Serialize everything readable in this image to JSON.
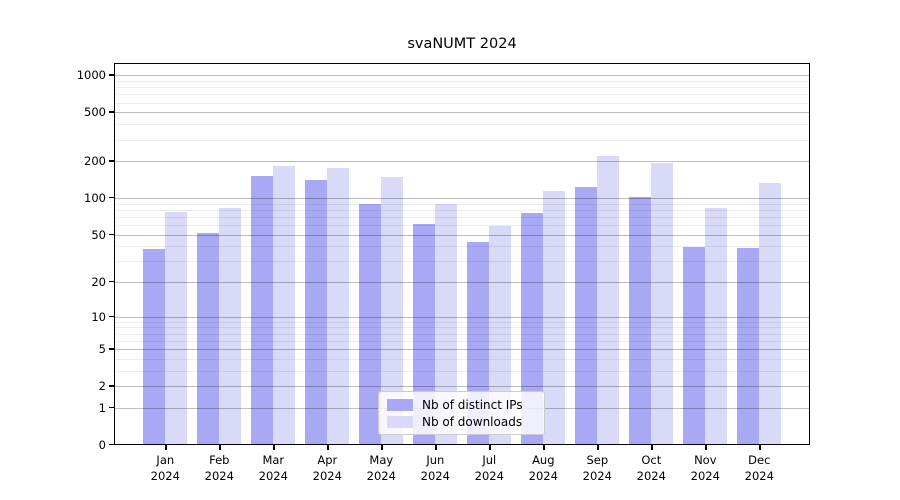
{
  "chart_data": {
    "type": "bar",
    "title": "svaNUMT 2024",
    "x_tick_top": [
      "Jan",
      "Feb",
      "Mar",
      "Apr",
      "May",
      "Jun",
      "Jul",
      "Aug",
      "Sep",
      "Oct",
      "Nov",
      "Dec"
    ],
    "x_tick_bottom": [
      "2024",
      "2024",
      "2024",
      "2024",
      "2024",
      "2024",
      "2024",
      "2024",
      "2024",
      "2024",
      "2024",
      "2024"
    ],
    "series": [
      {
        "name": "Nb of distinct IPs",
        "color": "#a8a8f5",
        "values": [
          37,
          51,
          150,
          137,
          87,
          60,
          43,
          74,
          120,
          100,
          39,
          38
        ]
      },
      {
        "name": "Nb of downloads",
        "color": "#d9d9f8",
        "values": [
          75,
          81,
          180,
          173,
          145,
          88,
          58,
          113,
          215,
          190,
          82,
          130
        ]
      }
    ],
    "y_major_ticks": [
      0,
      1,
      2,
      5,
      10,
      20,
      50,
      100,
      200,
      500,
      1000
    ],
    "y_minor_ticks": [
      3,
      4,
      6,
      7,
      8,
      9,
      30,
      40,
      60,
      70,
      80,
      90,
      300,
      400,
      600,
      700,
      800,
      900
    ],
    "y_scale": "log10(value+1)",
    "ylim": [
      0,
      1100
    ],
    "grid": true,
    "legend_position": "lower center"
  },
  "legend": {
    "items": [
      {
        "label": "Nb of distinct IPs"
      },
      {
        "label": "Nb of downloads"
      }
    ]
  },
  "title_text": "svaNUMT 2024"
}
